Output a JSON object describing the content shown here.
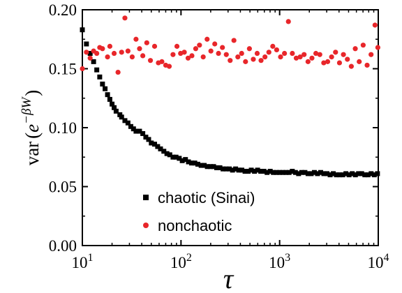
{
  "chart_data": {
    "type": "scatter",
    "xlabel": "τ",
    "ylabel": "var(e^{−βW})",
    "ylabel_parts": {
      "prefix": "var",
      "open": "(",
      "base": "e",
      "exponent": "−βW",
      "close": ")"
    },
    "xscale": "log",
    "xlim": [
      10,
      10000
    ],
    "ylim": [
      0.0,
      0.2
    ],
    "grid": false,
    "legend_position": "bottom-left",
    "x_ticks": [
      {
        "value": 10,
        "base": "10",
        "exp": "1"
      },
      {
        "value": 100,
        "base": "10",
        "exp": "2"
      },
      {
        "value": 1000,
        "base": "10",
        "exp": "3"
      },
      {
        "value": 10000,
        "base": "10",
        "exp": "4"
      }
    ],
    "y_ticks": [
      {
        "value": 0.0,
        "label": "0.00"
      },
      {
        "value": 0.05,
        "label": "0.05"
      },
      {
        "value": 0.1,
        "label": "0.10"
      },
      {
        "value": 0.15,
        "label": "0.15"
      },
      {
        "value": 0.2,
        "label": "0.20"
      }
    ],
    "series": [
      {
        "name": "chaotic (Sinai)",
        "marker": "square",
        "color": "#000000",
        "x": [
          10,
          11,
          12,
          13,
          14,
          15,
          16,
          17,
          18,
          19,
          20,
          21,
          22,
          24,
          25,
          27,
          29,
          31,
          33,
          35,
          38,
          41,
          44,
          47,
          50,
          54,
          58,
          62,
          67,
          72,
          77,
          83,
          89,
          96,
          103,
          111,
          119,
          128,
          138,
          148,
          160,
          172,
          185,
          199,
          214,
          230,
          248,
          267,
          287,
          309,
          333,
          358,
          385,
          414,
          446,
          480,
          516,
          556,
          598,
          644,
          693,
          746,
          803,
          864,
          930,
          1001,
          1077,
          1160,
          1248,
          1344,
          1446,
          1557,
          1676,
          1804,
          1942,
          2090,
          2250,
          2422,
          2607,
          2806,
          3020,
          3251,
          3500,
          3767,
          4055,
          4365,
          4699,
          5058,
          5445,
          5861,
          6309,
          6791,
          7310,
          7869,
          8470,
          9118,
          9815
        ],
        "y": [
          0.183,
          0.171,
          0.163,
          0.156,
          0.149,
          0.143,
          0.137,
          0.133,
          0.128,
          0.124,
          0.12,
          0.117,
          0.114,
          0.111,
          0.109,
          0.106,
          0.104,
          0.101,
          0.099,
          0.097,
          0.097,
          0.095,
          0.092,
          0.09,
          0.087,
          0.086,
          0.084,
          0.082,
          0.08,
          0.078,
          0.077,
          0.075,
          0.075,
          0.074,
          0.072,
          0.073,
          0.071,
          0.07,
          0.07,
          0.069,
          0.068,
          0.068,
          0.067,
          0.067,
          0.067,
          0.066,
          0.066,
          0.065,
          0.065,
          0.065,
          0.064,
          0.065,
          0.064,
          0.064,
          0.063,
          0.063,
          0.064,
          0.063,
          0.064,
          0.063,
          0.063,
          0.062,
          0.063,
          0.062,
          0.062,
          0.062,
          0.062,
          0.062,
          0.062,
          0.063,
          0.062,
          0.061,
          0.062,
          0.062,
          0.061,
          0.061,
          0.062,
          0.061,
          0.062,
          0.061,
          0.061,
          0.06,
          0.061,
          0.06,
          0.06,
          0.06,
          0.061,
          0.06,
          0.061,
          0.06,
          0.061,
          0.061,
          0.06,
          0.06,
          0.061,
          0.06,
          0.061
        ]
      },
      {
        "name": "nonchaotic",
        "marker": "circle",
        "color": "#e8262a",
        "x": [
          10,
          11,
          12,
          13,
          14,
          15,
          16,
          18,
          19,
          21,
          23,
          25,
          27,
          29,
          32,
          35,
          38,
          41,
          45,
          49,
          54,
          59,
          64,
          70,
          76,
          83,
          91,
          99,
          108,
          118,
          129,
          141,
          154,
          168,
          184,
          201,
          220,
          240,
          263,
          288,
          315,
          344,
          377,
          412,
          451,
          494,
          541,
          592,
          648,
          710,
          778,
          852,
          933,
          1022,
          1120,
          1227,
          1345,
          1474,
          1615,
          1770,
          1940,
          2126,
          2330,
          2554,
          2800,
          3069,
          3364,
          3688,
          4044,
          4434,
          4862,
          5331,
          5846,
          6410,
          7029,
          7708,
          8452,
          9267,
          9900
        ],
        "y": [
          0.15,
          0.164,
          0.159,
          0.165,
          0.163,
          0.168,
          0.167,
          0.16,
          0.169,
          0.163,
          0.147,
          0.164,
          0.193,
          0.165,
          0.16,
          0.175,
          0.167,
          0.161,
          0.172,
          0.157,
          0.169,
          0.155,
          0.156,
          0.153,
          0.152,
          0.162,
          0.169,
          0.163,
          0.164,
          0.159,
          0.161,
          0.167,
          0.17,
          0.16,
          0.175,
          0.165,
          0.171,
          0.163,
          0.168,
          0.162,
          0.157,
          0.174,
          0.16,
          0.163,
          0.156,
          0.167,
          0.158,
          0.163,
          0.157,
          0.16,
          0.164,
          0.169,
          0.166,
          0.16,
          0.163,
          0.19,
          0.163,
          0.159,
          0.16,
          0.162,
          0.156,
          0.159,
          0.163,
          0.162,
          0.155,
          0.156,
          0.16,
          0.164,
          0.155,
          0.162,
          0.158,
          0.152,
          0.167,
          0.156,
          0.17,
          0.153,
          0.162,
          0.187,
          0.168
        ]
      }
    ]
  }
}
